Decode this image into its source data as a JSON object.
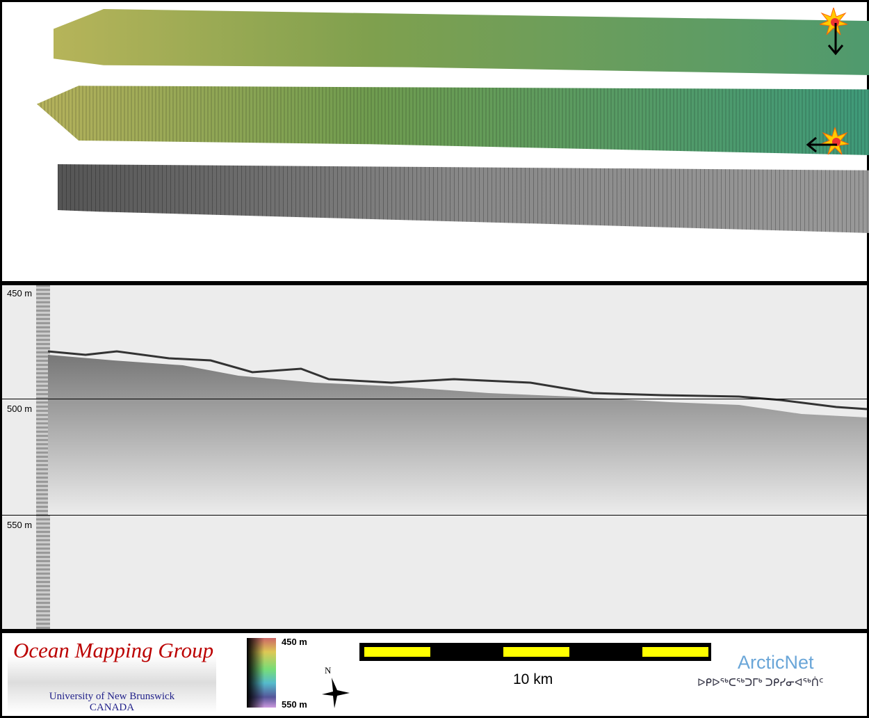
{
  "depth_axis": {
    "labels": [
      "450 m",
      "500 m",
      "550 m"
    ]
  },
  "legend": {
    "colorbar_top": "450 m",
    "colorbar_bottom": "550 m",
    "north_label": "N",
    "scale_label": "10 km"
  },
  "logos": {
    "omg_title": "Ocean Mapping Group",
    "omg_subtitle": "University of New Brunswick",
    "omg_country": "CANADA",
    "arcticnet": "ArcticNet",
    "arcticnet_inuktitut": "ᐅᑭᐅᖅᑕᖅᑐᒥᒃ ᑐᑭᓯᓂᐊᖅᑏᑦ"
  },
  "colors": {
    "scale_fill": "#ffff00",
    "omg_title": "#bb0000",
    "arcticnet": "#6aa6d8"
  }
}
